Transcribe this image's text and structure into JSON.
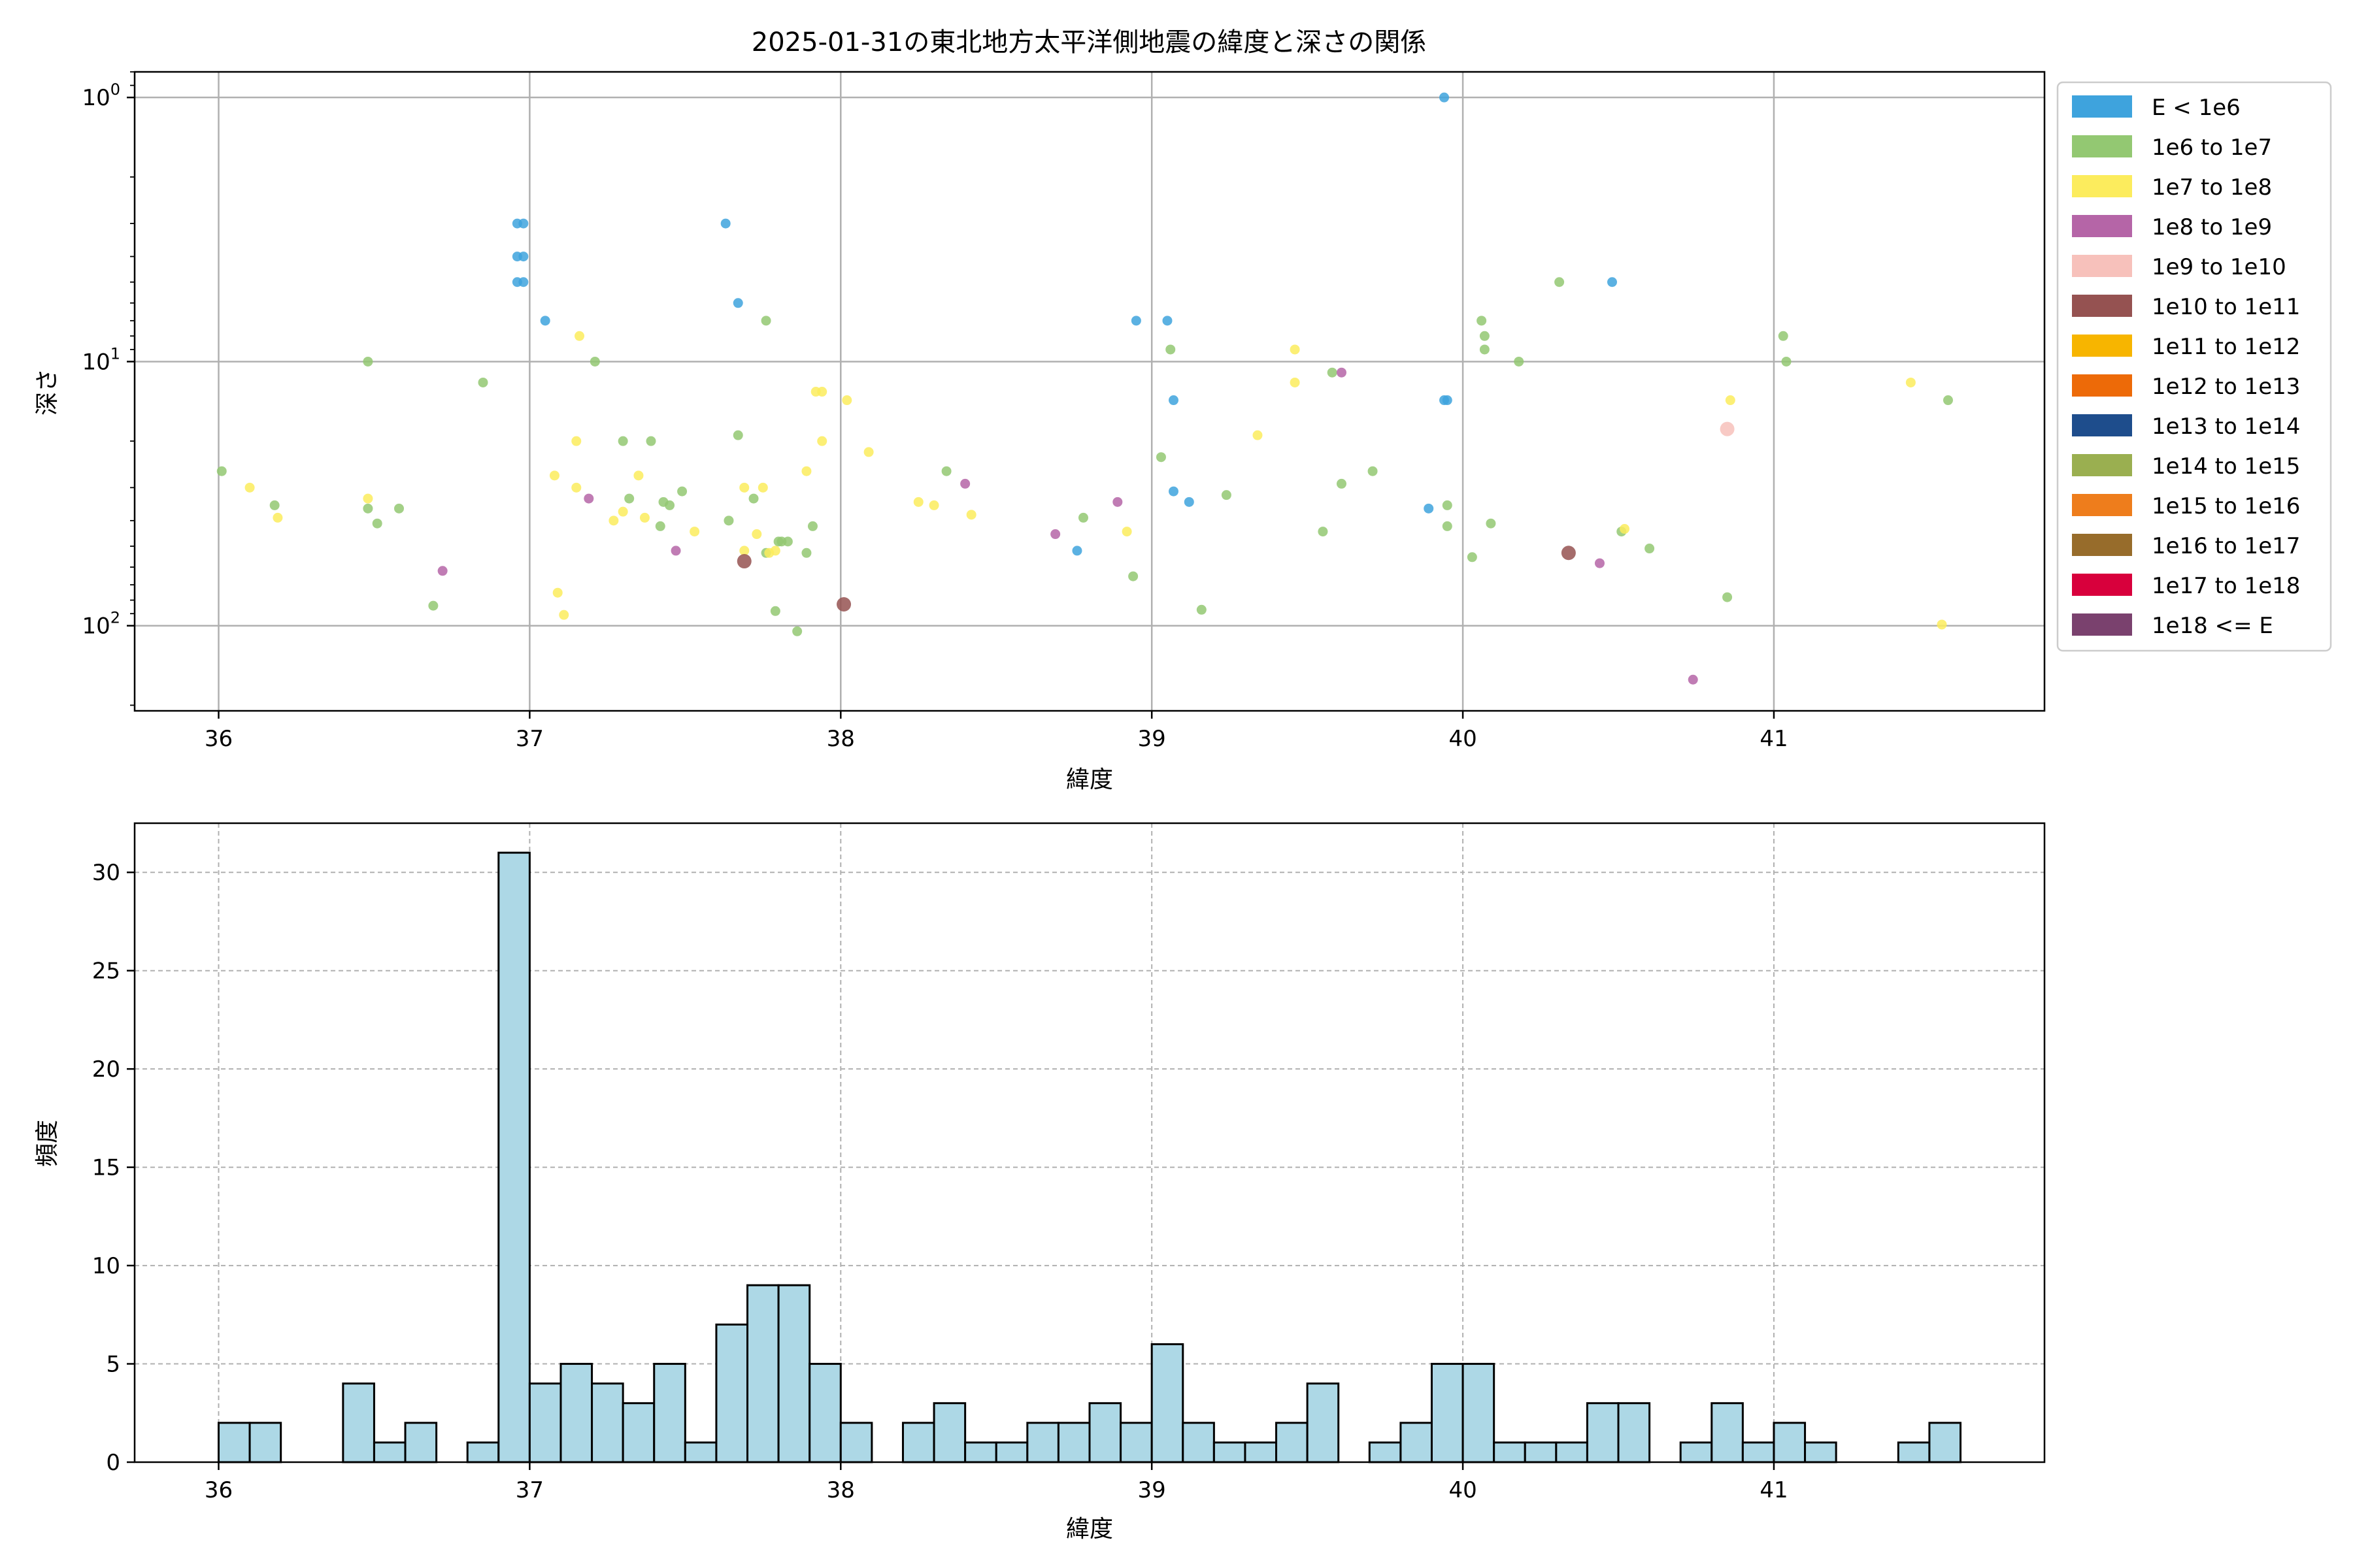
{
  "chart_data": [
    {
      "type": "scatter",
      "title": "2025-01-31の東北地方太平洋側地震の緯度と深さの関係",
      "xlabel": "緯度",
      "ylabel": "深さ",
      "xlim": [
        35.73,
        41.87
      ],
      "ylim": [
        210,
        0.8
      ],
      "yscale": "log-inverted",
      "xticks": [
        36,
        37,
        38,
        39,
        40,
        41
      ],
      "yticks": [
        {
          "value": 1,
          "base": "10",
          "exp": "0"
        },
        {
          "value": 10,
          "base": "10",
          "exp": "1"
        },
        {
          "value": 100,
          "base": "10",
          "exp": "2"
        }
      ],
      "grid": true,
      "legend_position": "outside-right",
      "legend": [
        {
          "label": "E < 1e6",
          "color": "#3ea3dd"
        },
        {
          "label": "1e6 to 1e7",
          "color": "#93c872"
        },
        {
          "label": "1e7 to 1e8",
          "color": "#fcec5d"
        },
        {
          "label": "1e8 to 1e9",
          "color": "#b565a7"
        },
        {
          "label": "1e9 to 1e10",
          "color": "#f7c1bb"
        },
        {
          "label": "1e10 to 1e11",
          "color": "#955251"
        },
        {
          "label": "1e11 to 1e12",
          "color": "#f7b500"
        },
        {
          "label": "1e12 to 1e13",
          "color": "#ed6a08"
        },
        {
          "label": "1e13 to 1e14",
          "color": "#1e4d8c"
        },
        {
          "label": "1e14 to 1e15",
          "color": "#9aaf50"
        },
        {
          "label": "1e15 to 1e16",
          "color": "#ee7d1c"
        },
        {
          "label": "1e16 to 1e17",
          "color": "#976c2b"
        },
        {
          "label": "1e17 to 1e18",
          "color": "#d8003c"
        },
        {
          "label": "1e18 <= E",
          "color": "#7a416e"
        }
      ],
      "series": [
        {
          "name": "E < 1e6",
          "points": [
            [
              36.96,
              3
            ],
            [
              36.98,
              3
            ],
            [
              36.96,
              4
            ],
            [
              36.98,
              4
            ],
            [
              36.96,
              5
            ],
            [
              36.98,
              5
            ],
            [
              37.05,
              7
            ],
            [
              37.63,
              3
            ],
            [
              37.67,
              6
            ],
            [
              38.76,
              52
            ],
            [
              38.95,
              7
            ],
            [
              39.05,
              7
            ],
            [
              39.07,
              14
            ],
            [
              39.12,
              34
            ],
            [
              39.07,
              31
            ],
            [
              39.89,
              36
            ],
            [
              39.94,
              1
            ],
            [
              39.95,
              14
            ],
            [
              39.94,
              14
            ],
            [
              40.48,
              5
            ]
          ]
        },
        {
          "name": "1e6 to 1e7",
          "points": [
            [
              36.01,
              26
            ],
            [
              36.18,
              35
            ],
            [
              36.48,
              10
            ],
            [
              36.48,
              36
            ],
            [
              36.51,
              41
            ],
            [
              36.58,
              36
            ],
            [
              36.69,
              84
            ],
            [
              36.85,
              12
            ],
            [
              37.21,
              10
            ],
            [
              37.3,
              20
            ],
            [
              37.32,
              33
            ],
            [
              37.39,
              20
            ],
            [
              37.42,
              42
            ],
            [
              37.43,
              34
            ],
            [
              37.45,
              35
            ],
            [
              37.49,
              31
            ],
            [
              37.64,
              40
            ],
            [
              37.67,
              19
            ],
            [
              37.72,
              33
            ],
            [
              37.76,
              7
            ],
            [
              37.76,
              53
            ],
            [
              37.79,
              88
            ],
            [
              37.8,
              48
            ],
            [
              37.81,
              48
            ],
            [
              37.83,
              48
            ],
            [
              37.86,
              105
            ],
            [
              37.89,
              53
            ],
            [
              37.91,
              42
            ],
            [
              38.34,
              26
            ],
            [
              38.78,
              39
            ],
            [
              38.94,
              65
            ],
            [
              39.03,
              23
            ],
            [
              39.06,
              9
            ],
            [
              39.16,
              87
            ],
            [
              39.24,
              32
            ],
            [
              39.55,
              44
            ],
            [
              39.58,
              11
            ],
            [
              39.61,
              29
            ],
            [
              39.71,
              26
            ],
            [
              39.95,
              35
            ],
            [
              39.95,
              42
            ],
            [
              40.03,
              55
            ],
            [
              40.06,
              7
            ],
            [
              40.07,
              8
            ],
            [
              40.07,
              9
            ],
            [
              40.09,
              41
            ],
            [
              40.18,
              10
            ],
            [
              40.31,
              5
            ],
            [
              40.51,
              44
            ],
            [
              40.6,
              51
            ],
            [
              40.85,
              78
            ],
            [
              41.03,
              8
            ],
            [
              41.04,
              10
            ],
            [
              41.56,
              14
            ]
          ]
        },
        {
          "name": "1e7 to 1e8",
          "points": [
            [
              36.1,
              30
            ],
            [
              36.19,
              39
            ],
            [
              36.48,
              33
            ],
            [
              37.08,
              27
            ],
            [
              37.09,
              75
            ],
            [
              37.11,
              91
            ],
            [
              37.15,
              30
            ],
            [
              37.15,
              20
            ],
            [
              37.16,
              8
            ],
            [
              37.27,
              40
            ],
            [
              37.3,
              37
            ],
            [
              37.35,
              27
            ],
            [
              37.37,
              39
            ],
            [
              37.53,
              44
            ],
            [
              37.69,
              30
            ],
            [
              37.69,
              52
            ],
            [
              37.73,
              45
            ],
            [
              37.75,
              30
            ],
            [
              37.77,
              53
            ],
            [
              37.79,
              52
            ],
            [
              37.89,
              26
            ],
            [
              37.92,
              13
            ],
            [
              37.94,
              13
            ],
            [
              37.94,
              20
            ],
            [
              38.02,
              14
            ],
            [
              38.09,
              22
            ],
            [
              38.25,
              34
            ],
            [
              38.3,
              35
            ],
            [
              38.42,
              38
            ],
            [
              38.92,
              44
            ],
            [
              39.34,
              19
            ],
            [
              39.46,
              9
            ],
            [
              39.46,
              12
            ],
            [
              40.52,
              43
            ],
            [
              40.86,
              14
            ],
            [
              41.44,
              12
            ],
            [
              41.54,
              99
            ]
          ]
        },
        {
          "name": "1e8 to 1e9",
          "points": [
            [
              36.72,
              62
            ],
            [
              37.19,
              33
            ],
            [
              37.47,
              52
            ],
            [
              38.4,
              29
            ],
            [
              38.69,
              45
            ],
            [
              38.89,
              34
            ],
            [
              39.61,
              11
            ],
            [
              40.44,
              58
            ],
            [
              40.74,
              160
            ]
          ]
        },
        {
          "name": "1e9 to 1e10",
          "points": [
            [
              40.85,
              18
            ]
          ]
        },
        {
          "name": "1e10 to 1e11",
          "points": [
            [
              37.69,
              57
            ],
            [
              38.01,
              83
            ],
            [
              40.34,
              53
            ]
          ]
        }
      ]
    },
    {
      "type": "bar",
      "xlabel": "緯度",
      "ylabel": "頻度",
      "xlim": [
        35.73,
        41.87
      ],
      "ylim": [
        0,
        32.5
      ],
      "xticks": [
        36,
        37,
        38,
        39,
        40,
        41
      ],
      "yticks": [
        0,
        5,
        10,
        15,
        20,
        25,
        30
      ],
      "grid": true,
      "bar_color": "#add8e6",
      "bin_start": 36.0,
      "bin_width": 0.1,
      "values": [
        2,
        2,
        0,
        0,
        4,
        1,
        2,
        0,
        1,
        31,
        4,
        5,
        4,
        3,
        5,
        1,
        7,
        9,
        9,
        5,
        2,
        0,
        2,
        3,
        1,
        1,
        2,
        2,
        3,
        2,
        6,
        2,
        1,
        1,
        2,
        4,
        0,
        1,
        2,
        5,
        5,
        1,
        1,
        1,
        3,
        3,
        0,
        1,
        3,
        1,
        2,
        1,
        0,
        0,
        1,
        2
      ]
    }
  ]
}
